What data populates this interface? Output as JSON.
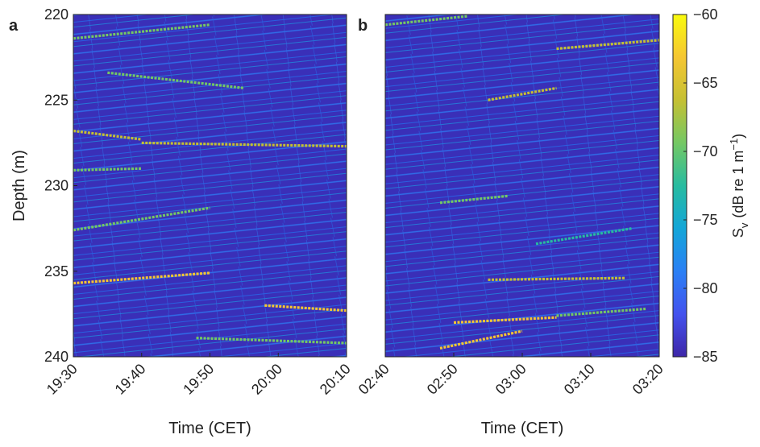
{
  "chart_data": [
    {
      "type": "echogram",
      "panel_label": "a",
      "xlabel": "Time (CET)",
      "ylabel": "Depth (m)",
      "xlim": [
        "19:30",
        "20:10"
      ],
      "xticks": [
        "19:30",
        "19:40",
        "19:50",
        "20:00",
        "20:10"
      ],
      "ylim": [
        220,
        240
      ],
      "yticks": [
        220,
        225,
        230,
        235,
        240
      ],
      "y_reversed": true,
      "tracks": [
        {
          "x": [
            "19:30",
            "19:50"
          ],
          "y": [
            235.7,
            235.1
          ],
          "sv": -64
        },
        {
          "x": [
            "19:58",
            "20:10"
          ],
          "y": [
            237.0,
            237.3
          ],
          "sv": -63
        },
        {
          "x": [
            "19:30",
            "19:40"
          ],
          "y": [
            226.8,
            227.3
          ],
          "sv": -67
        },
        {
          "x": [
            "19:40",
            "20:10"
          ],
          "y": [
            227.5,
            227.7
          ],
          "sv": -67
        },
        {
          "x": [
            "19:30",
            "19:40"
          ],
          "y": [
            229.1,
            229.0
          ],
          "sv": -69
        },
        {
          "x": [
            "19:30",
            "19:50"
          ],
          "y": [
            232.6,
            231.3
          ],
          "sv": -70
        },
        {
          "x": [
            "19:48",
            "20:10"
          ],
          "y": [
            238.9,
            239.2
          ],
          "sv": -68
        },
        {
          "x": [
            "19:30",
            "19:50"
          ],
          "y": [
            221.4,
            220.6
          ],
          "sv": -69
        },
        {
          "x": [
            "19:35",
            "19:55"
          ],
          "y": [
            223.4,
            224.3
          ],
          "sv": -70
        }
      ]
    },
    {
      "type": "echogram",
      "panel_label": "b",
      "xlabel": "Time (CET)",
      "xlim": [
        "02:40",
        "03:20"
      ],
      "xticks": [
        "02:40",
        "02:50",
        "03:00",
        "03:10",
        "03:20"
      ],
      "ylim": [
        220,
        240
      ],
      "y_reversed": true,
      "tracks": [
        {
          "x": [
            "02:48",
            "03:00"
          ],
          "y": [
            239.5,
            238.5
          ],
          "sv": -64
        },
        {
          "x": [
            "02:50",
            "03:05"
          ],
          "y": [
            238.0,
            237.7
          ],
          "sv": -63
        },
        {
          "x": [
            "02:55",
            "03:15"
          ],
          "y": [
            235.5,
            235.4
          ],
          "sv": -66
        },
        {
          "x": [
            "02:55",
            "03:05"
          ],
          "y": [
            225.0,
            224.3
          ],
          "sv": -66
        },
        {
          "x": [
            "03:05",
            "03:20"
          ],
          "y": [
            222.0,
            221.5
          ],
          "sv": -67
        },
        {
          "x": [
            "02:40",
            "02:52"
          ],
          "y": [
            220.6,
            220.1
          ],
          "sv": -69
        },
        {
          "x": [
            "02:48",
            "02:58"
          ],
          "y": [
            231.0,
            230.6
          ],
          "sv": -68
        },
        {
          "x": [
            "03:05",
            "03:18"
          ],
          "y": [
            237.6,
            237.2
          ],
          "sv": -69
        },
        {
          "x": [
            "03:02",
            "03:16"
          ],
          "y": [
            233.4,
            232.5
          ],
          "sv": -71
        }
      ]
    },
    {
      "type": "colorbar",
      "label_symbol": "S",
      "label_subscript": "v",
      "label_unit": "(dB re 1 m",
      "label_exponent": "−1",
      "label_close": ")",
      "lim": [
        -85,
        -60
      ],
      "ticks": [
        {
          "value": -60,
          "label": "−60"
        },
        {
          "value": -65,
          "label": "−65"
        },
        {
          "value": -70,
          "label": "−70"
        },
        {
          "value": -75,
          "label": "−75"
        },
        {
          "value": -80,
          "label": "−80"
        },
        {
          "value": -85,
          "label": "−85"
        }
      ],
      "colormap": [
        "#3e26a8",
        "#4352ee",
        "#2a80f5",
        "#13a6d8",
        "#27bca0",
        "#74c864",
        "#c5c033",
        "#f5c632",
        "#f9fb0e"
      ]
    }
  ]
}
